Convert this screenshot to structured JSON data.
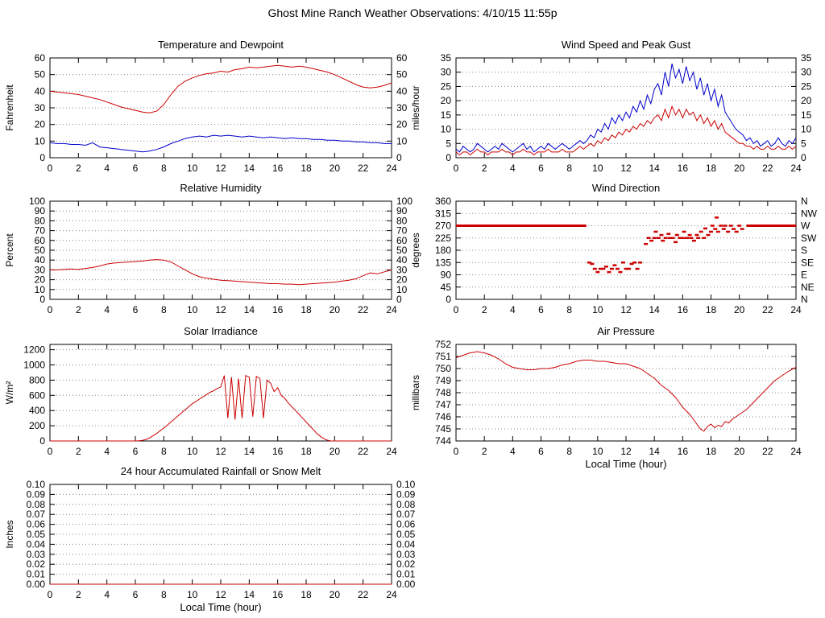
{
  "title": "Ghost Mine Ranch Weather Observations: 4/10/15 11:55p",
  "x_axis": {
    "min": 0,
    "max": 24,
    "tick_step": 2,
    "label": "Local Time (hour)"
  },
  "colors": {
    "red": "#cc0000",
    "blue": "#0000cc",
    "axis": "#000000",
    "grid": "#888888",
    "background": "#ffffff"
  },
  "chart_data": [
    {
      "id": "temperature-dewpoint",
      "type": "line",
      "title": "Temperature and Dewpoint",
      "ylabel": "Fahrenheit",
      "col": 0,
      "row": 0,
      "ymin": 0,
      "ymax": 60,
      "ytick": 10,
      "ydecimals": 0,
      "right_labels": true,
      "xlabel": "",
      "series": [
        {
          "name": "temperature",
          "color": "red",
          "x_start": 0,
          "x_step": 0.5,
          "values": [
            40,
            39.5,
            39,
            38.5,
            38,
            37,
            36,
            35,
            33.5,
            32,
            30.5,
            29.5,
            28.5,
            27.5,
            27,
            28,
            32,
            38,
            43,
            46,
            48,
            49.5,
            50.5,
            51,
            52,
            51.5,
            53,
            53.5,
            54.5,
            54,
            54.5,
            55,
            55.5,
            55,
            54.5,
            55,
            54.5,
            53.5,
            52.5,
            51.5,
            50,
            48,
            46,
            44,
            42.5,
            42,
            42.5,
            43.5,
            45
          ]
        },
        {
          "name": "dewpoint",
          "color": "blue",
          "x_start": 0,
          "x_step": 0.5,
          "values": [
            9,
            8.5,
            8.5,
            8,
            8,
            7.5,
            9,
            6.5,
            6,
            5.5,
            5,
            4.5,
            4,
            3.5,
            4,
            5,
            6.5,
            8.5,
            10,
            11.5,
            12.5,
            13,
            12.5,
            13.5,
            13,
            13.5,
            13,
            12.5,
            13,
            12.5,
            12,
            12.5,
            12,
            11.5,
            12,
            11.5,
            11.5,
            11,
            11,
            10.5,
            10.5,
            10,
            10,
            9.5,
            9.5,
            9,
            9,
            8.5,
            8.5
          ]
        }
      ]
    },
    {
      "id": "wind-speed-gust",
      "type": "line",
      "title": "Wind Speed and Peak Gust",
      "ylabel": "miles/hour",
      "col": 1,
      "row": 0,
      "ymin": 0,
      "ymax": 35,
      "ytick": 5,
      "ydecimals": 0,
      "right_labels": true,
      "xlabel": "",
      "series": [
        {
          "name": "peak-gust",
          "color": "blue",
          "x_start": 0,
          "x_step": 0.25,
          "values": [
            3,
            2,
            4,
            3,
            2,
            3,
            5,
            4,
            3,
            2,
            3,
            4,
            3,
            5,
            4,
            3,
            2,
            3,
            4,
            5,
            3,
            4,
            2,
            3,
            4,
            3,
            5,
            4,
            3,
            4,
            5,
            4,
            3,
            4,
            5,
            6,
            5,
            6,
            8,
            7,
            10,
            9,
            12,
            10,
            14,
            12,
            15,
            13,
            16,
            14,
            18,
            16,
            20,
            17,
            22,
            19,
            24,
            26,
            22,
            30,
            25,
            33,
            28,
            31,
            26,
            32,
            27,
            30,
            24,
            28,
            22,
            26,
            20,
            24,
            18,
            22,
            16,
            14,
            12,
            10,
            9,
            8,
            6,
            7,
            5,
            6,
            4,
            5,
            6,
            4,
            5,
            7,
            5,
            4,
            6,
            5,
            7
          ]
        },
        {
          "name": "wind-speed",
          "color": "red",
          "x_start": 0,
          "x_step": 0.25,
          "values": [
            2,
            1,
            2,
            2,
            1,
            2,
            3,
            2,
            2,
            1,
            2,
            2,
            2,
            3,
            2,
            2,
            1,
            2,
            2,
            3,
            2,
            2,
            1,
            2,
            2,
            2,
            3,
            2,
            2,
            2,
            3,
            2,
            2,
            2,
            3,
            4,
            3,
            4,
            5,
            4,
            6,
            5,
            7,
            6,
            8,
            7,
            9,
            8,
            10,
            9,
            11,
            10,
            12,
            11,
            13,
            12,
            14,
            15,
            13,
            17,
            14,
            18,
            15,
            17,
            14,
            17,
            15,
            16,
            13,
            15,
            12,
            14,
            11,
            13,
            10,
            12,
            9,
            8,
            7,
            6,
            5,
            5,
            4,
            4,
            3,
            4,
            3,
            3,
            4,
            3,
            3,
            4,
            3,
            3,
            4,
            3,
            4
          ]
        }
      ]
    },
    {
      "id": "relative-humidity",
      "type": "line",
      "title": "Relative Humidity",
      "ylabel": "Percent",
      "col": 0,
      "row": 1,
      "ymin": 0,
      "ymax": 100,
      "ytick": 10,
      "ydecimals": 0,
      "right_labels": true,
      "xlabel": "",
      "series": [
        {
          "name": "humidity",
          "color": "red",
          "x_start": 0,
          "x_step": 0.5,
          "values": [
            30,
            30,
            30.5,
            31,
            30.5,
            31.5,
            32.5,
            34,
            36,
            37,
            37.5,
            38,
            38.5,
            39,
            40,
            40.5,
            40,
            38,
            34,
            30,
            26,
            23,
            21.5,
            20.5,
            19.5,
            19,
            18.5,
            18,
            17.5,
            17,
            16.5,
            16,
            16,
            15.5,
            15.5,
            15,
            15.5,
            16,
            16.5,
            17,
            17.5,
            18.5,
            19.5,
            21,
            24,
            27,
            26,
            28,
            30
          ]
        }
      ]
    },
    {
      "id": "wind-direction",
      "type": "scatter",
      "title": "Wind Direction",
      "ylabel": "degrees",
      "col": 1,
      "row": 1,
      "ymin": 0,
      "ymax": 360,
      "ytick": 45,
      "ydecimals": 0,
      "right_labels": false,
      "xlabel": "",
      "right_compass": [
        "N",
        "NE",
        "E",
        "SE",
        "S",
        "SW",
        "W",
        "NW",
        "N"
      ],
      "series": [
        {
          "name": "wind-direction",
          "color": "red",
          "runs": [
            [
              0,
              9.2,
              270
            ],
            [
              20.5,
              24,
              270
            ]
          ],
          "points": [
            [
              9.4,
              135
            ],
            [
              9.6,
              130
            ],
            [
              9.8,
              112
            ],
            [
              10.0,
              100
            ],
            [
              10.2,
              112
            ],
            [
              10.4,
              112
            ],
            [
              10.6,
              120
            ],
            [
              10.8,
              100
            ],
            [
              11.0,
              112
            ],
            [
              11.2,
              125
            ],
            [
              11.4,
              112
            ],
            [
              11.6,
              100
            ],
            [
              11.8,
              135
            ],
            [
              12.0,
              112
            ],
            [
              12.2,
              112
            ],
            [
              12.4,
              130
            ],
            [
              12.6,
              135
            ],
            [
              12.8,
              112
            ],
            [
              13.0,
              135
            ],
            [
              13.4,
              203
            ],
            [
              13.6,
              225
            ],
            [
              13.8,
              215
            ],
            [
              14.0,
              225
            ],
            [
              14.1,
              248
            ],
            [
              14.3,
              225
            ],
            [
              14.5,
              236
            ],
            [
              14.6,
              215
            ],
            [
              14.8,
              225
            ],
            [
              15.0,
              240
            ],
            [
              15.1,
              225
            ],
            [
              15.3,
              225
            ],
            [
              15.5,
              210
            ],
            [
              15.6,
              236
            ],
            [
              15.8,
              225
            ],
            [
              16.0,
              225
            ],
            [
              16.1,
              248
            ],
            [
              16.3,
              225
            ],
            [
              16.5,
              236
            ],
            [
              16.6,
              225
            ],
            [
              16.8,
              215
            ],
            [
              17.0,
              236
            ],
            [
              17.1,
              225
            ],
            [
              17.3,
              248
            ],
            [
              17.5,
              225
            ],
            [
              17.6,
              260
            ],
            [
              17.8,
              236
            ],
            [
              18.0,
              248
            ],
            [
              18.1,
              270
            ],
            [
              18.3,
              258
            ],
            [
              18.4,
              300
            ],
            [
              18.5,
              248
            ],
            [
              18.7,
              270
            ],
            [
              18.9,
              258
            ],
            [
              19.0,
              270
            ],
            [
              19.2,
              248
            ],
            [
              19.4,
              270
            ],
            [
              19.6,
              258
            ],
            [
              19.8,
              248
            ],
            [
              20.0,
              270
            ],
            [
              20.2,
              258
            ]
          ]
        }
      ]
    },
    {
      "id": "solar-irradiance",
      "type": "line",
      "title": "Solar Irradiance",
      "ylabel": "W/m²",
      "col": 0,
      "row": 2,
      "ymin": 0,
      "ymax": 1270,
      "ytick": 200,
      "ydecimals": 0,
      "right_labels": false,
      "xlabel": "",
      "series": [
        {
          "name": "irradiance",
          "color": "red",
          "x_start": 0,
          "x_step": 0.25,
          "values": [
            0,
            0,
            0,
            0,
            0,
            0,
            0,
            0,
            0,
            0,
            0,
            0,
            0,
            0,
            0,
            0,
            0,
            0,
            0,
            0,
            0,
            0,
            0,
            0,
            0,
            2,
            8,
            20,
            40,
            70,
            100,
            135,
            170,
            210,
            250,
            290,
            330,
            370,
            410,
            450,
            490,
            520,
            550,
            580,
            610,
            640,
            660,
            690,
            710,
            860,
            300,
            840,
            280,
            820,
            300,
            860,
            840,
            320,
            850,
            820,
            300,
            800,
            760,
            650,
            700,
            600,
            560,
            500,
            450,
            400,
            350,
            300,
            250,
            200,
            150,
            100,
            60,
            30,
            10,
            0,
            0,
            0,
            0,
            0,
            0,
            0,
            0,
            0,
            0,
            0,
            0,
            0,
            0,
            0,
            0,
            0,
            0
          ]
        }
      ]
    },
    {
      "id": "air-pressure",
      "type": "line",
      "title": "Air Pressure",
      "ylabel": "millibars",
      "col": 1,
      "row": 2,
      "ymin": 744,
      "ymax": 752,
      "ytick": 1,
      "ydecimals": 0,
      "right_labels": false,
      "xlabel": "Local Time (hour)",
      "series": [
        {
          "name": "pressure",
          "color": "red",
          "x_start": 0,
          "x_step": 0.25,
          "values": [
            750.9,
            751.0,
            751.1,
            751.2,
            751.3,
            751.35,
            751.4,
            751.35,
            751.3,
            751.2,
            751.1,
            750.95,
            750.8,
            750.6,
            750.4,
            750.25,
            750.1,
            750.05,
            750.0,
            749.95,
            749.9,
            749.9,
            749.9,
            749.95,
            750.0,
            750.0,
            750.0,
            750.05,
            750.1,
            750.2,
            750.3,
            750.35,
            750.4,
            750.5,
            750.6,
            750.65,
            750.7,
            750.7,
            750.7,
            750.65,
            750.6,
            750.6,
            750.6,
            750.55,
            750.5,
            750.45,
            750.4,
            750.4,
            750.4,
            750.3,
            750.2,
            750.1,
            750.0,
            749.8,
            749.6,
            749.4,
            749.2,
            748.9,
            748.6,
            748.4,
            748.2,
            747.9,
            747.6,
            747.2,
            746.8,
            746.5,
            746.2,
            745.8,
            745.4,
            745.0,
            744.8,
            745.2,
            745.4,
            745.1,
            745.3,
            745.2,
            745.6,
            745.5,
            745.8,
            746.0,
            746.2,
            746.4,
            746.6,
            746.9,
            747.2,
            747.5,
            747.8,
            748.1,
            748.4,
            748.7,
            749.0,
            749.2,
            749.4,
            749.6,
            749.8,
            749.95,
            750.1
          ]
        }
      ]
    },
    {
      "id": "rainfall",
      "type": "line",
      "title": "24 hour Accumulated Rainfall or Snow Melt",
      "ylabel": "Inches",
      "col": 0,
      "row": 3,
      "ymin": 0,
      "ymax": 0.1,
      "ytick": 0.01,
      "ydecimals": 2,
      "right_labels": true,
      "xlabel": "Local Time (hour)",
      "series": [
        {
          "name": "rainfall",
          "color": "red",
          "points": [
            [
              0,
              0
            ],
            [
              24,
              0
            ]
          ]
        }
      ]
    }
  ]
}
